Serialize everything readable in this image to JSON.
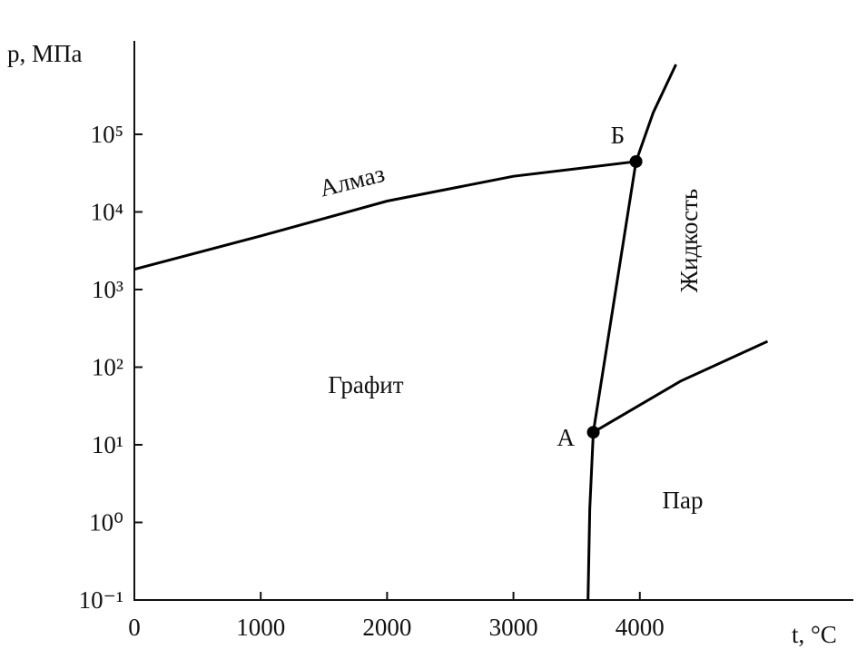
{
  "chart_data": {
    "type": "line",
    "x_label": "t, °C",
    "y_label": "p, МПа",
    "xlim": [
      0,
      5690
    ],
    "xticks": [
      0,
      1000,
      2000,
      3000,
      4000
    ],
    "ylim": [
      0.1,
      1600000
    ],
    "y_log": true,
    "yticks": [
      {
        "value": 0.1,
        "label": "10⁻¹"
      },
      {
        "value": 1,
        "label": "10⁰"
      },
      {
        "value": 10,
        "label": "10¹"
      },
      {
        "value": 100,
        "label": "10²"
      },
      {
        "value": 1000,
        "label": "10³"
      },
      {
        "value": 10000,
        "label": "10⁴"
      },
      {
        "value": 100000,
        "label": "10⁵"
      }
    ],
    "color": "#000000",
    "series": [
      {
        "x": [
          0,
          1000,
          2000,
          3000,
          3970
        ],
        "values": [
          1820,
          4900,
          13800,
          28800,
          44600
        ]
      },
      {
        "x": [
          3632,
          3970
        ],
        "values": [
          14.5,
          44600
        ]
      },
      {
        "x": [
          3970,
          4106,
          4286
        ],
        "values": [
          44600,
          190000,
          794000
        ]
      },
      {
        "x": [
          3632,
          4322,
          5011
        ],
        "values": [
          14.5,
          66,
          215
        ]
      },
      {
        "x": [
          3590,
          3604,
          3632
        ],
        "values": [
          0.1,
          1.5,
          14.5
        ]
      }
    ],
    "points": {
      "x": [
        3632,
        3970
      ],
      "values": [
        14.5,
        44600
      ],
      "labels": [
        "А",
        "Б"
      ]
    },
    "annotations": [
      "Алмаз",
      "Графит",
      "Жидкость",
      "Пар"
    ]
  }
}
